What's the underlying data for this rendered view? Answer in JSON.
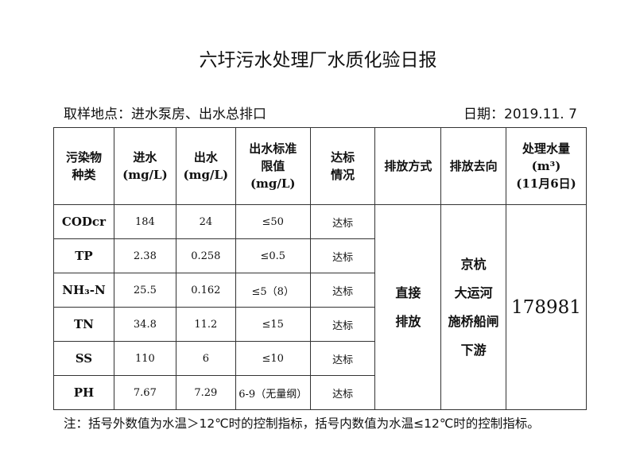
{
  "title": "六圩污水处理厂水质化验日报",
  "location": "取样地点：进水泵房、出水总排口",
  "date": "日期：2019.11. 7",
  "headers": [
    "污染物种类",
    "进水(mg/L)",
    "出水(mg/L)",
    "出水标准限值(mg/L)",
    "达标情况",
    "排放方式",
    "排放去向",
    "处理水量(m³)(11月6日)"
  ],
  "header_lines": [
    [
      "污染物",
      "种类"
    ],
    [
      "进水",
      "(mg/L)"
    ],
    [
      "出水",
      "(mg/L)"
    ],
    [
      "出水标准",
      "限值",
      "(mg/L)"
    ],
    [
      "达标",
      "情况"
    ],
    [
      "排放方式"
    ],
    [
      "排放去向"
    ],
    [
      "处理水量",
      "(m³)",
      "(11月6日)"
    ]
  ],
  "rows": [
    {
      "name": "CODcr",
      "in": "184",
      "out": "24",
      "limit": "≤50",
      "status": "达标"
    },
    {
      "name": "TP",
      "in": "2.38",
      "out": "0.258",
      "limit": "≤0.5",
      "status": "达标"
    },
    {
      "name": "NH₃-N",
      "in": "25.5",
      "out": "0.162",
      "limit": "≤5（8）",
      "status": "达标"
    },
    {
      "name": "TN",
      "in": "34.8",
      "out": "11.2",
      "limit": "≤15",
      "status": "达标"
    },
    {
      "name": "SS",
      "in": "110",
      "out": "6",
      "limit": "≤10",
      "status": "达标"
    },
    {
      "name": "PH",
      "in": "7.67",
      "out": "7.29",
      "limit": "6-9（无量纲）",
      "status": "达标"
    }
  ],
  "discharge_method": [
    "直接",
    "排放"
  ],
  "discharge_dest": [
    "京杭",
    "大运河",
    "施桥船闸",
    "下游"
  ],
  "volume": "178981",
  "note": "注：括号外数值为水温＞12℃时的控制指标，括号内数值为水温≤12℃时的控制指标。"
}
